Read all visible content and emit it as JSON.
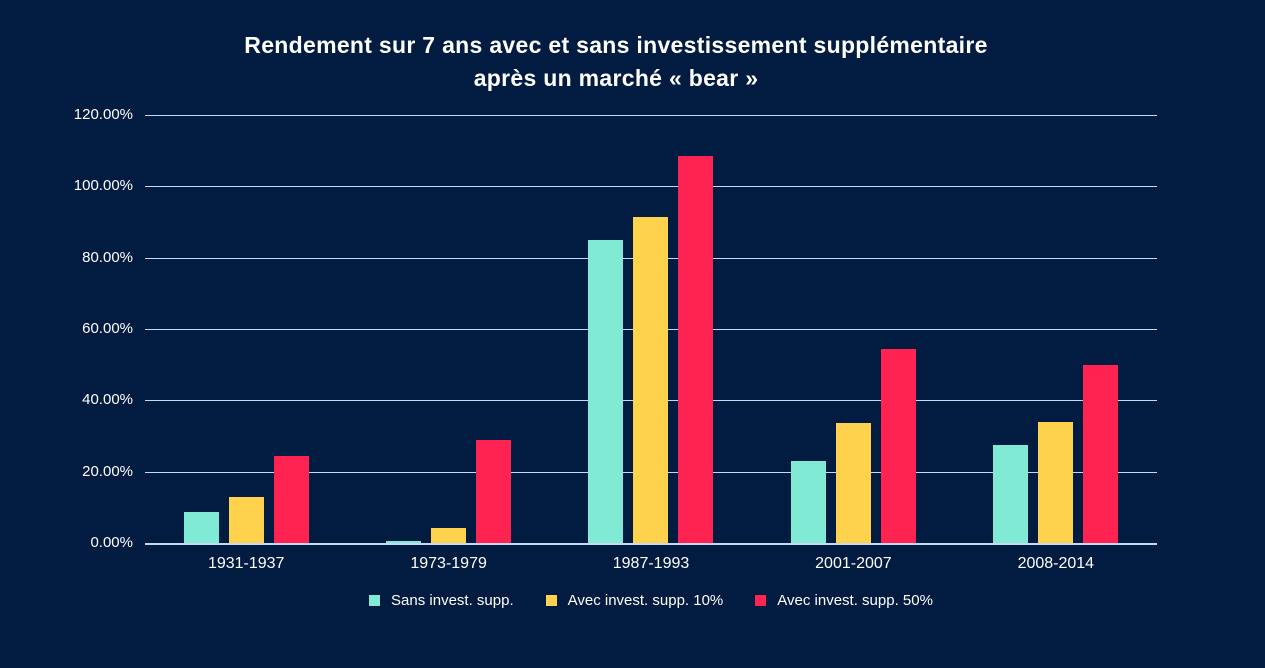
{
  "colors": {
    "background": "#021B40",
    "text": "#FFFFFF",
    "gridline": "#C8D8F0"
  },
  "title": {
    "line1": "Rendement sur 7 ans avec et sans investissement supplémentaire",
    "line2": "après un marché « bear »"
  },
  "chart_data": {
    "type": "bar",
    "title": "Rendement sur 7 ans avec et sans investissement supplémentaire après un marché « bear »",
    "categories": [
      "1931-1937",
      "1973-1979",
      "1987-1993",
      "2001-2007",
      "2008-2014"
    ],
    "series": [
      {
        "name": "Sans invest. supp.",
        "color": "#80EAD4",
        "values": [
          8.6,
          0.7,
          84.9,
          23.1,
          27.6
        ]
      },
      {
        "name": "Avec invest. supp. 10%",
        "color": "#FFD24D",
        "values": [
          13.0,
          4.1,
          91.3,
          33.7,
          33.8
        ]
      },
      {
        "name": "Avec invest. supp. 50%",
        "color": "#FF2351",
        "values": [
          24.5,
          29.0,
          108.5,
          54.3,
          49.8
        ]
      }
    ],
    "xlabel": "",
    "ylabel": "",
    "ylim": [
      0,
      120
    ],
    "ytick_step": 20,
    "ytick_labels": [
      "0.00%",
      "20.00%",
      "40.00%",
      "60.00%",
      "80.00%",
      "100.00%",
      "120.00%"
    ],
    "grid": "horizontal",
    "gridline_color": "#C8D8F0",
    "legend_position": "bottom"
  }
}
